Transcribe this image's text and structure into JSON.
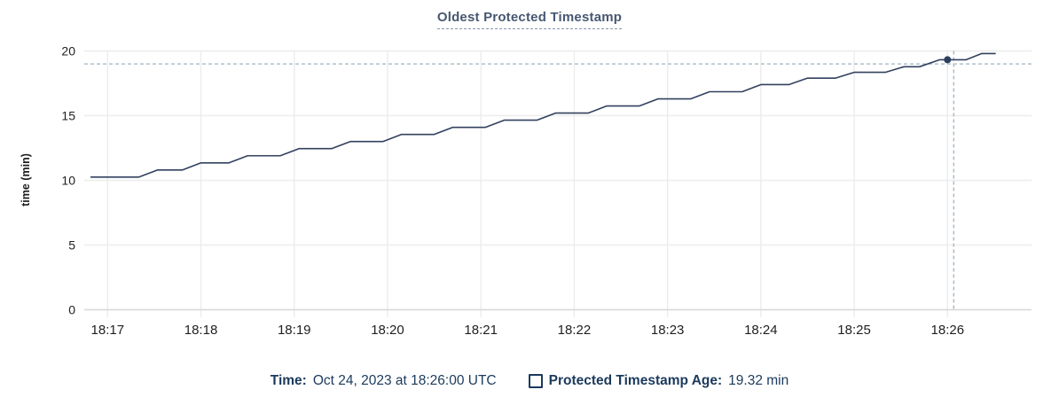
{
  "title": "Oldest Protected Timestamp",
  "colors": {
    "title": "#475872",
    "line": "#32415f",
    "dot": "#2b3f5c",
    "crosshair": "#9fb4c2",
    "grid": "#ececec",
    "axis": "#d9d9d9",
    "tick_text": "#1f1f1f",
    "legend_text": "#1b3a5c"
  },
  "chart_data": {
    "type": "line",
    "title": "Oldest Protected Timestamp",
    "xlabel": "",
    "ylabel": "time (min)",
    "ylim": [
      0,
      20
    ],
    "yticks": [
      0,
      5,
      10,
      15,
      20
    ],
    "grid": "on",
    "x_domain_seconds": [
      -15,
      594
    ],
    "xticks": [
      {
        "t": 0,
        "label": "18:17"
      },
      {
        "t": 60,
        "label": "18:18"
      },
      {
        "t": 120,
        "label": "18:19"
      },
      {
        "t": 180,
        "label": "18:20"
      },
      {
        "t": 240,
        "label": "18:21"
      },
      {
        "t": 300,
        "label": "18:22"
      },
      {
        "t": 360,
        "label": "18:23"
      },
      {
        "t": 420,
        "label": "18:24"
      },
      {
        "t": 480,
        "label": "18:25"
      },
      {
        "t": 540,
        "label": "18:26"
      }
    ],
    "series": [
      {
        "name": "Protected Timestamp Age",
        "unit": "min",
        "points": [
          [
            -11,
            10.25
          ],
          [
            20,
            10.25
          ],
          [
            32,
            10.8
          ],
          [
            48,
            10.8
          ],
          [
            60,
            11.35
          ],
          [
            78,
            11.35
          ],
          [
            90,
            11.9
          ],
          [
            111,
            11.9
          ],
          [
            123,
            12.45
          ],
          [
            144,
            12.45
          ],
          [
            156,
            13.0
          ],
          [
            177,
            13.0
          ],
          [
            189,
            13.55
          ],
          [
            210,
            13.55
          ],
          [
            222,
            14.1
          ],
          [
            243,
            14.1
          ],
          [
            255,
            14.65
          ],
          [
            276,
            14.65
          ],
          [
            288,
            15.2
          ],
          [
            309,
            15.2
          ],
          [
            321,
            15.75
          ],
          [
            342,
            15.75
          ],
          [
            354,
            16.3
          ],
          [
            375,
            16.3
          ],
          [
            387,
            16.85
          ],
          [
            408,
            16.85
          ],
          [
            420,
            17.4
          ],
          [
            438,
            17.4
          ],
          [
            450,
            17.9
          ],
          [
            468,
            17.9
          ],
          [
            480,
            18.35
          ],
          [
            500,
            18.35
          ],
          [
            512,
            18.78
          ],
          [
            522,
            18.78
          ],
          [
            535,
            19.32
          ],
          [
            552,
            19.32
          ],
          [
            562,
            19.8
          ],
          [
            571,
            19.8
          ]
        ]
      }
    ],
    "hover": {
      "dot_time_s": 540,
      "dot_value": 19.32,
      "crosshair_time_s": 544,
      "crosshair_value": 19.0
    }
  },
  "legend": {
    "time_label": "Time:",
    "time_value": "Oct 24, 2023 at 18:26:00 UTC",
    "series_label": "Protected Timestamp Age:",
    "series_value": "19.32 min"
  }
}
